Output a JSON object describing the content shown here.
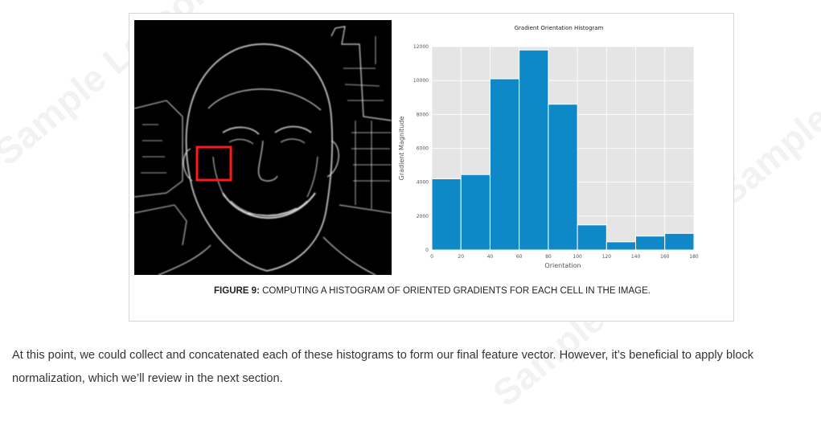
{
  "figure": {
    "caption_label": "FIGURE 9:",
    "caption_text": " COMPUTING A HISTOGRAM OF ORIENTED GRADIENTS FOR EACH CELL IN THE IMAGE."
  },
  "body": {
    "paragraph": "At this point, we could collect and concatenated each of these histograms to form our final feature vector. However, it’s beneficial to apply block normalization, which we’ll review in the next section."
  },
  "watermark": {
    "text": "Sample Lesson"
  },
  "colors": {
    "bar": "#0e88c7",
    "plot_bg": "#e5e5e5",
    "highlight_box": "#ff1a1a"
  },
  "chart_data": {
    "type": "bar",
    "title": "Gradient Orientation Histogram",
    "xlabel": "Orientation",
    "ylabel": "Gradient Magnitude",
    "bin_edges": [
      0,
      20,
      40,
      60,
      80,
      100,
      120,
      140,
      160,
      180
    ],
    "values": [
      4200,
      4450,
      10100,
      11800,
      8600,
      1480,
      480,
      820,
      980
    ],
    "xlim": [
      0,
      180
    ],
    "ylim": [
      0,
      12000
    ],
    "xticks": [
      0,
      20,
      40,
      60,
      80,
      100,
      120,
      140,
      160,
      180
    ],
    "yticks": [
      0,
      2000,
      4000,
      6000,
      8000,
      10000,
      12000
    ],
    "grid": true
  }
}
